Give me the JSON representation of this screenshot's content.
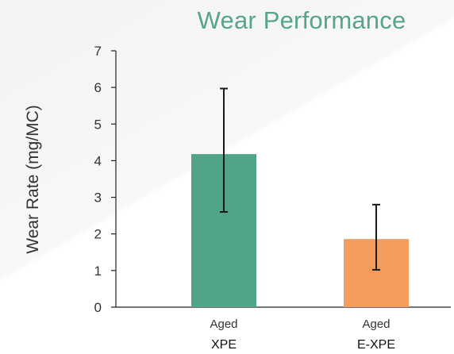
{
  "chart_data": {
    "type": "bar",
    "title": "Wear Performance",
    "ylabel": "Wear Rate (mg/MC)",
    "xlabel": "",
    "ylim": [
      0,
      7
    ],
    "yticks": [
      "0",
      "1",
      "2",
      "3",
      "4",
      "5",
      "6",
      "7"
    ],
    "categories": [
      {
        "line1": "Aged",
        "line2": "XPE"
      },
      {
        "line1": "Aged",
        "line2": "E-XPE"
      }
    ],
    "values": [
      4.18,
      1.86
    ],
    "error_low": [
      2.6,
      1.02
    ],
    "error_high": [
      5.97,
      2.8
    ],
    "colors": [
      "#4fa585",
      "#f49c5c"
    ],
    "grid": false
  }
}
